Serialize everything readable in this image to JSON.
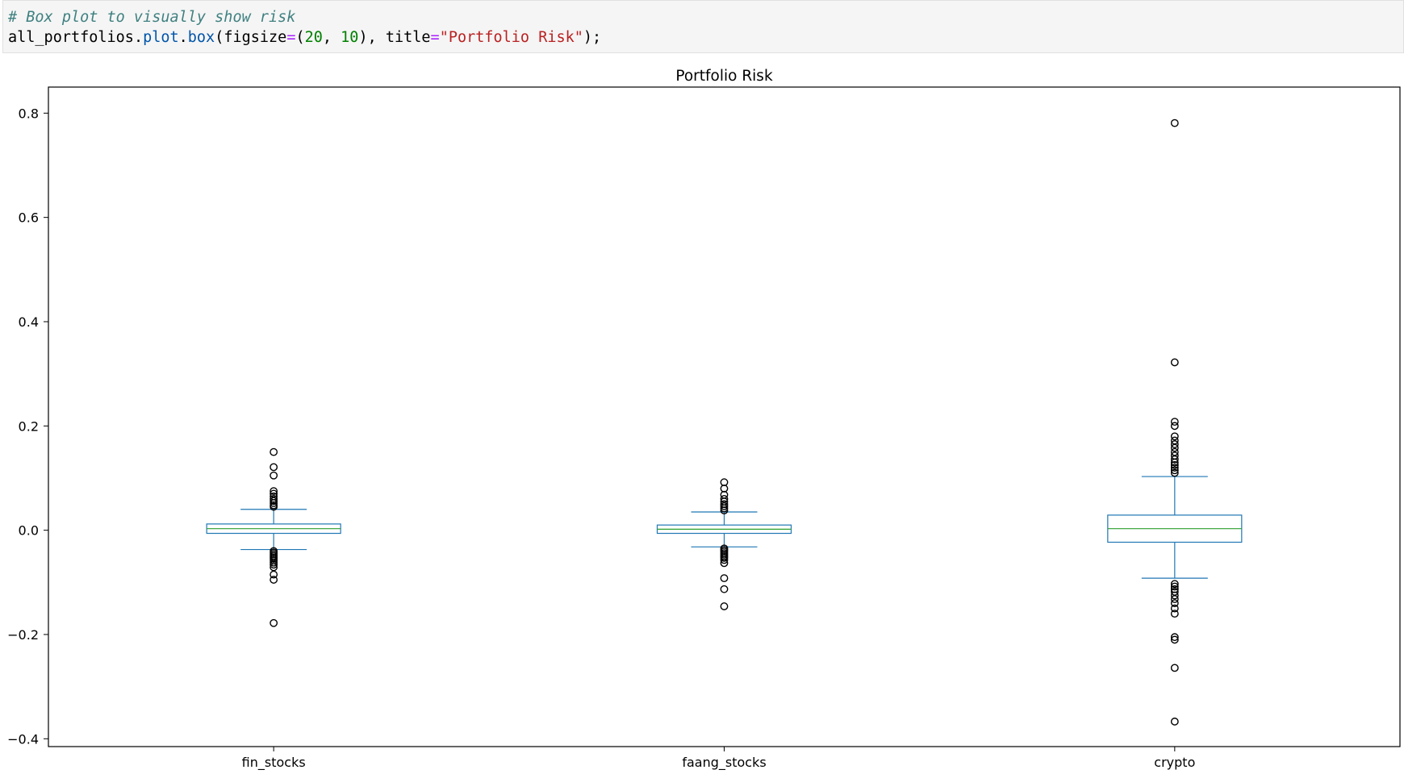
{
  "code": {
    "comment": "# Box plot to visually show risk",
    "tokens": [
      {
        "text": "all_portfolios",
        "cls": "plain"
      },
      {
        "text": ".",
        "cls": "plain"
      },
      {
        "text": "plot",
        "cls": "attr"
      },
      {
        "text": ".",
        "cls": "plain"
      },
      {
        "text": "box",
        "cls": "attr"
      },
      {
        "text": "(figsize",
        "cls": "plain"
      },
      {
        "text": "=",
        "cls": "op"
      },
      {
        "text": "(",
        "cls": "plain"
      },
      {
        "text": "20",
        "cls": "num"
      },
      {
        "text": ", ",
        "cls": "plain"
      },
      {
        "text": "10",
        "cls": "num"
      },
      {
        "text": "), title",
        "cls": "plain"
      },
      {
        "text": "=",
        "cls": "op"
      },
      {
        "text": "\"Portfolio Risk\"",
        "cls": "str"
      },
      {
        "text": ");",
        "cls": "plain"
      }
    ]
  },
  "chart_data": {
    "type": "box",
    "title": "Portfolio Risk",
    "xlabel": "",
    "ylabel": "",
    "ylim": [
      -0.415,
      0.85
    ],
    "yticks": [
      -0.4,
      -0.2,
      0.0,
      0.2,
      0.4,
      0.6,
      0.8
    ],
    "ytick_labels": [
      "−0.4",
      "−0.2",
      "0.0",
      "0.2",
      "0.4",
      "0.6",
      "0.8"
    ],
    "categories": [
      "fin_stocks",
      "faang_stocks",
      "crypto"
    ],
    "grid": false,
    "colors": {
      "box": "#1f77b4",
      "median": "#2ca02c",
      "outlier": "#000000"
    },
    "boxes": [
      {
        "name": "fin_stocks",
        "whisker_low": -0.037,
        "q1": -0.006,
        "median": 0.003,
        "q3": 0.012,
        "whisker_high": 0.04,
        "outliers": [
          0.15,
          0.121,
          0.105,
          0.075,
          0.07,
          0.065,
          0.06,
          0.056,
          0.052,
          0.048,
          0.045,
          -0.04,
          -0.043,
          -0.046,
          -0.049,
          -0.052,
          -0.055,
          -0.058,
          -0.062,
          -0.066,
          -0.071,
          -0.085,
          -0.095,
          -0.178
        ]
      },
      {
        "name": "faang_stocks",
        "whisker_low": -0.032,
        "q1": -0.006,
        "median": 0.002,
        "q3": 0.01,
        "whisker_high": 0.035,
        "outliers": [
          0.092,
          0.08,
          0.068,
          0.06,
          0.055,
          0.05,
          0.046,
          0.042,
          0.038,
          -0.035,
          -0.038,
          -0.041,
          -0.044,
          -0.047,
          -0.05,
          -0.053,
          -0.057,
          -0.063,
          -0.092,
          -0.113,
          -0.146
        ]
      },
      {
        "name": "crypto",
        "whisker_low": -0.092,
        "q1": -0.023,
        "median": 0.003,
        "q3": 0.029,
        "whisker_high": 0.103,
        "outliers": [
          0.781,
          0.322,
          0.208,
          0.2,
          0.18,
          0.172,
          0.165,
          0.158,
          0.15,
          0.143,
          0.136,
          0.13,
          0.125,
          0.12,
          0.115,
          0.11,
          -0.103,
          -0.108,
          -0.113,
          -0.118,
          -0.125,
          -0.132,
          -0.14,
          -0.15,
          -0.16,
          -0.205,
          -0.21,
          -0.264,
          -0.367
        ]
      }
    ]
  }
}
